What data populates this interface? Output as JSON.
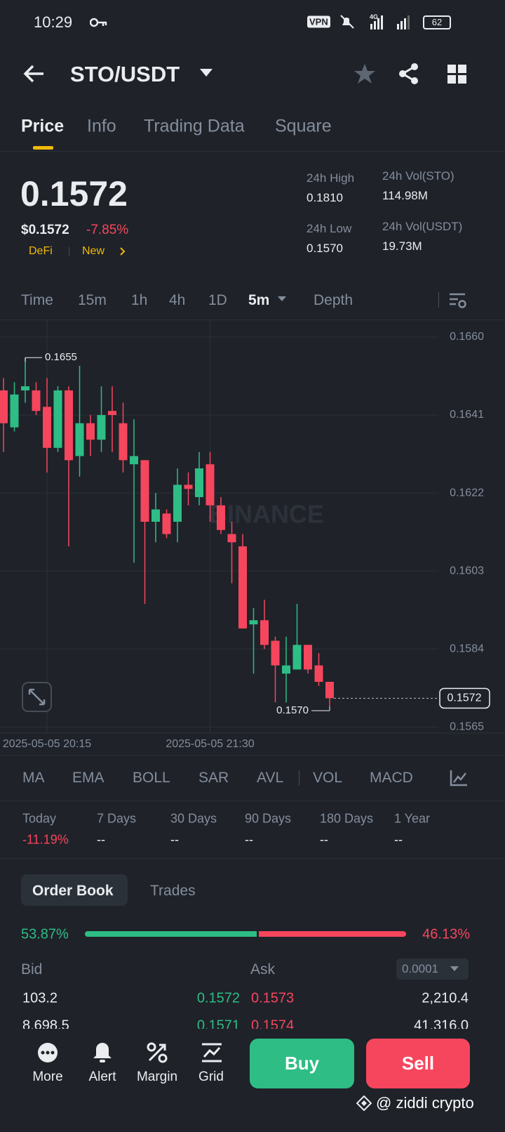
{
  "status_bar": {
    "time": "10:29",
    "vpn": "VPN",
    "network": "4G",
    "battery": "62"
  },
  "header": {
    "pair": "STO/USDT"
  },
  "tabs": [
    "Price",
    "Info",
    "Trading Data",
    "Square"
  ],
  "summary": {
    "price": "0.1572",
    "usd_price": "$0.1572",
    "change": "-7.85%",
    "tags": [
      "DeFi",
      "New"
    ],
    "stats": [
      {
        "label": "24h High",
        "value": "0.1810"
      },
      {
        "label": "24h Low",
        "value": "0.1570"
      },
      {
        "label": "24h Vol(STO)",
        "value": "114.98M"
      },
      {
        "label": "24h Vol(USDT)",
        "value": "19.73M"
      }
    ]
  },
  "intervals": [
    "Time",
    "15m",
    "1h",
    "4h",
    "1D",
    "5m",
    "Depth"
  ],
  "chart_data": {
    "type": "candlestick",
    "watermark": "BINANCE",
    "series": [
      {
        "name": "STO/USDT",
        "up_color": "#2ebd85",
        "down_color": "#f6465d",
        "open": [
          0.1647,
          0.1638,
          0.1647,
          0.1647,
          0.1643,
          0.1633,
          0.1647,
          0.1631,
          0.1639,
          0.1635,
          0.1642,
          0.1639,
          0.1629,
          0.163,
          0.1615,
          0.1617,
          0.1615,
          0.1624,
          0.1621,
          0.1629,
          0.1619,
          0.1612,
          0.1609,
          0.159,
          0.1591,
          0.1586,
          0.1578,
          0.1579,
          0.1585,
          0.158,
          0.1576
        ],
        "high": [
          0.165,
          0.1649,
          0.1655,
          0.1649,
          0.165,
          0.1648,
          0.1648,
          0.1653,
          0.1641,
          0.1648,
          0.1648,
          0.1644,
          0.164,
          0.163,
          0.1622,
          0.1618,
          0.1628,
          0.1627,
          0.1632,
          0.1632,
          0.1621,
          0.1615,
          0.1612,
          0.1594,
          0.1596,
          0.1587,
          0.1587,
          0.1595,
          0.1585,
          0.1583,
          0.1576
        ],
        "low": [
          0.1632,
          0.1637,
          0.1644,
          0.1641,
          0.1627,
          0.1632,
          0.1609,
          0.1626,
          0.1631,
          0.1632,
          0.1632,
          0.1627,
          0.1605,
          0.1595,
          0.161,
          0.1611,
          0.161,
          0.1619,
          0.1619,
          0.1615,
          0.1612,
          0.16,
          0.1589,
          0.1578,
          0.1584,
          0.1571,
          0.1571,
          0.1579,
          0.1578,
          0.1575,
          0.157
        ],
        "close": [
          0.1639,
          0.1646,
          0.1648,
          0.1642,
          0.1633,
          0.1647,
          0.163,
          0.1639,
          0.1635,
          0.1641,
          0.1641,
          0.163,
          0.1631,
          0.1615,
          0.1618,
          0.1612,
          0.1624,
          0.1623,
          0.1628,
          0.1619,
          0.1613,
          0.161,
          0.1589,
          0.1591,
          0.1585,
          0.158,
          0.158,
          0.1585,
          0.1579,
          0.1576,
          0.1572
        ]
      }
    ],
    "ylim": [
      0.15635,
      0.16641
    ],
    "yticks": [
      {
        "value": 0.166,
        "label": "0.1660"
      },
      0.1641,
      0.1622,
      0.1603,
      0.1584,
      0.1565
    ],
    "xticks": [
      {
        "value": 4,
        "label": "2025-05-05 20:15"
      },
      {
        "value": 19,
        "label": "2025-05-05 21:30"
      }
    ],
    "grid": true,
    "high_marker": {
      "index": 2,
      "value": 0.1655
    },
    "low_marker": {
      "index": 30,
      "value": 0.157,
      "label": "0.1570"
    },
    "last_price": {
      "value": 0.1572
    }
  },
  "indicators": [
    "MA",
    "EMA",
    "BOLL",
    "SAR",
    "AVL",
    "VOL",
    "MACD"
  ],
  "performance": [
    {
      "label": "Today",
      "value": "-11.19%"
    },
    {
      "label": "7 Days",
      "value": "--"
    },
    {
      "label": "30 Days",
      "value": "--"
    },
    {
      "label": "90 Days",
      "value": "--"
    },
    {
      "label": "180 Days",
      "value": "--"
    },
    {
      "label": "1 Year",
      "value": "--"
    }
  ],
  "order_book": {
    "tabs": [
      "Order Book",
      "Trades"
    ],
    "bid_ratio": "53.87%",
    "ask_ratio": "46.13%",
    "bid_label": "Bid",
    "ask_label": "Ask",
    "precision": "0.0001",
    "rows": [
      [
        "103.2",
        "0.1572",
        "0.1573",
        "2,210.4"
      ],
      [
        "8,698.5",
        "0.1571",
        "0.1574",
        "41,316.0"
      ]
    ]
  },
  "bottom_bar": {
    "actions": [
      "More",
      "Alert",
      "Margin",
      "Grid"
    ],
    "buy": "Buy",
    "sell": "Sell",
    "watermark": "@ ziddi crypto"
  }
}
